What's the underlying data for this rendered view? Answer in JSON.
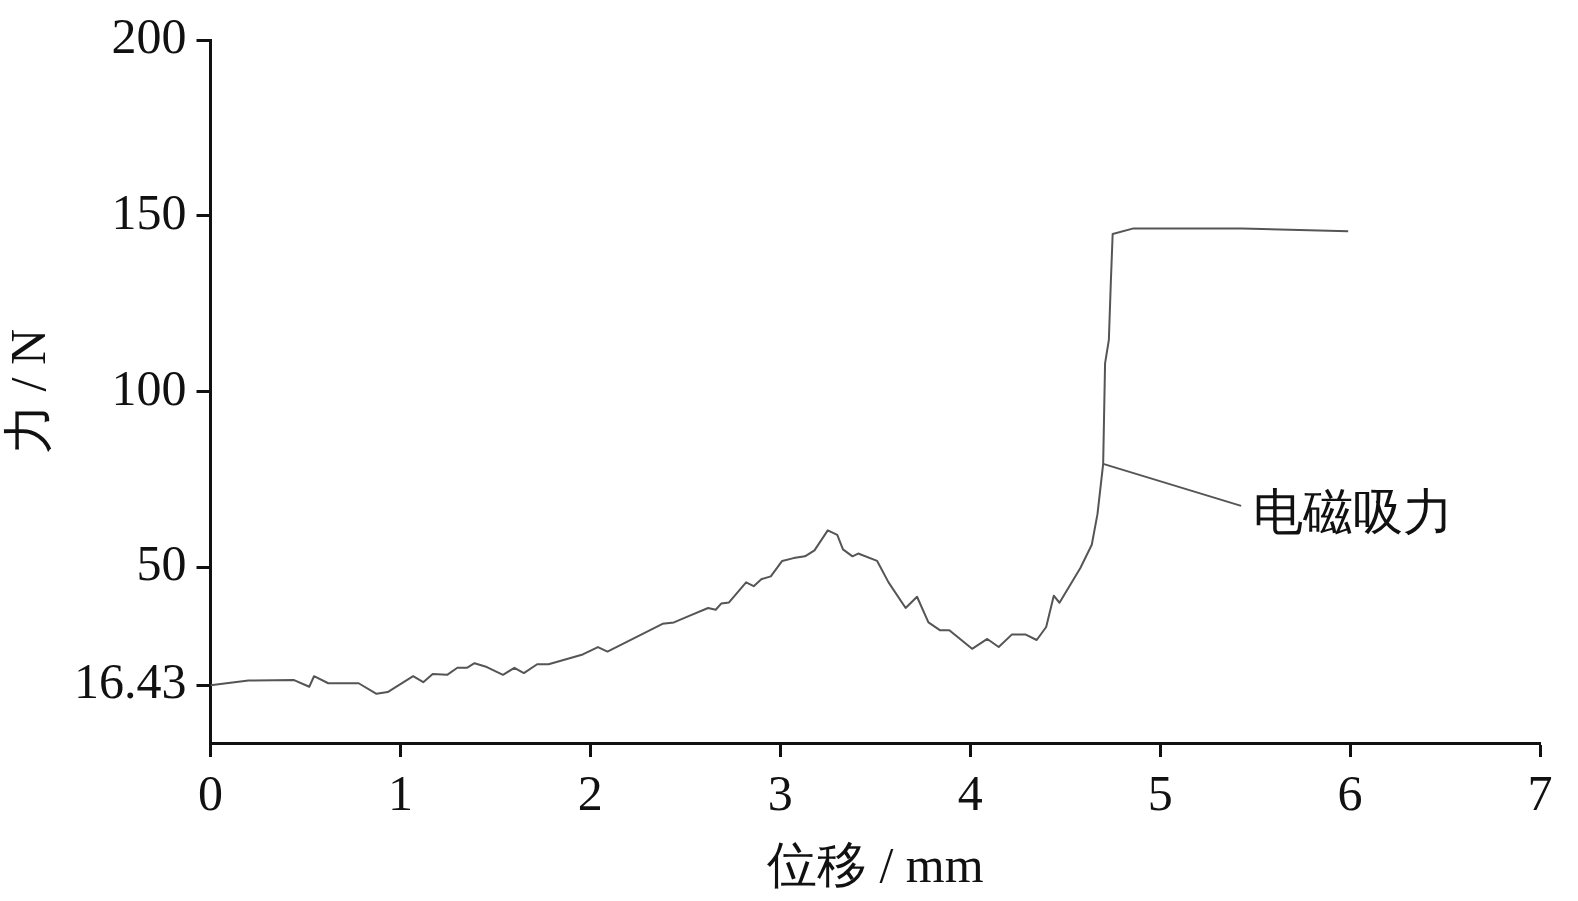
{
  "chart_data": {
    "type": "line",
    "xlabel": "位移 / mm",
    "ylabel": "力 / N",
    "xlim": [
      0,
      7
    ],
    "xticks": [
      0,
      1,
      2,
      3,
      4,
      5,
      6,
      7
    ],
    "ylim": [
      0,
      200
    ],
    "yticks": [
      16.43,
      50,
      100,
      150,
      200
    ],
    "grid": false,
    "legend": false,
    "marker": "none",
    "line_style": "solid",
    "annotations": [
      {
        "text": "电磁吸力",
        "x": 4.7,
        "y": 79.4
      }
    ],
    "series": [
      {
        "color": "#555555",
        "x": [
          0,
          0.2,
          0.44,
          0.52,
          0.545,
          0.62,
          0.78,
          0.874,
          0.933,
          1.067,
          1.12,
          1.17,
          1.246,
          1.3,
          1.35,
          1.39,
          1.455,
          1.54,
          1.6,
          1.65,
          1.72,
          1.78,
          1.96,
          2.04,
          2.09,
          2.38,
          2.44,
          2.53,
          2.62,
          2.66,
          2.69,
          2.73,
          2.82,
          2.86,
          2.9,
          2.95,
          3.01,
          3.07,
          3.13,
          3.18,
          3.25,
          3.3,
          3.33,
          3.38,
          3.41,
          3.51,
          3.57,
          3.66,
          3.72,
          3.78,
          3.84,
          3.89,
          4.01,
          4.09,
          4.15,
          4.22,
          4.29,
          4.35,
          4.4,
          4.44,
          4.47,
          4.58,
          4.64,
          4.67,
          4.7,
          4.71,
          4.73,
          4.74,
          4.75,
          4.86,
          5.43,
          5.99
        ],
        "values": [
          16.43,
          17.8,
          17.9,
          16,
          19,
          17,
          17,
          14,
          14.5,
          19,
          17.3,
          19.6,
          19.4,
          21.4,
          21.4,
          22.7,
          21.6,
          19.4,
          21.4,
          19.9,
          22.4,
          22.4,
          25.2,
          27.3,
          26,
          33.9,
          34.3,
          36.4,
          38.4,
          37.9,
          39.7,
          40,
          45.7,
          44.6,
          46.6,
          47.4,
          51.8,
          52.6,
          53.1,
          54.8,
          60.5,
          59.2,
          55.1,
          53.1,
          53.9,
          51.8,
          45.7,
          38.4,
          41.6,
          34.3,
          32.1,
          32.1,
          26.8,
          29.6,
          27.3,
          30.9,
          30.9,
          29.3,
          33,
          41.9,
          39.9,
          49.8,
          56.4,
          65.1,
          79.4,
          108,
          114.7,
          130.5,
          144.8,
          146.4,
          146.4,
          145.6
        ]
      }
    ]
  }
}
